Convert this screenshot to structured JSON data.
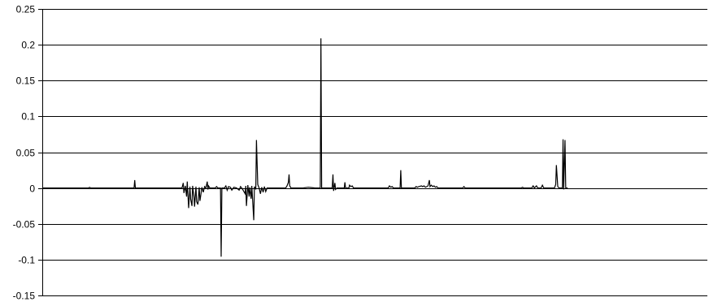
{
  "chart_data": {
    "type": "line",
    "title": "",
    "xlabel": "",
    "ylabel": "",
    "ylim": [
      -0.15,
      0.25
    ],
    "yticks": [
      0.25,
      0.2,
      0.15,
      0.1,
      0.05,
      0,
      -0.05,
      -0.1,
      -0.15
    ],
    "ytick_labels": [
      "0.25",
      "0.2",
      "0.15",
      "0.1",
      "0.05",
      "0",
      "-0.05",
      "-0.1",
      "-0.15"
    ],
    "grid": true,
    "legend": "none",
    "line_color": "#000000",
    "x_range": [
      0,
      1000
    ],
    "series": [
      {
        "points": [
          [
            0,
            0
          ],
          [
            70,
            0
          ],
          [
            71,
            0.001
          ],
          [
            73,
            0
          ],
          [
            138,
            0
          ],
          [
            139,
            0.011
          ],
          [
            140,
            0
          ],
          [
            210,
            0
          ],
          [
            212,
            0.007
          ],
          [
            213,
            -0.007
          ],
          [
            215,
            0.003
          ],
          [
            217,
            -0.012
          ],
          [
            218,
            0.009
          ],
          [
            220,
            -0.028
          ],
          [
            222,
            0.002
          ],
          [
            223,
            -0.015
          ],
          [
            225,
            -0.025
          ],
          [
            226,
            0.003
          ],
          [
            228,
            -0.012
          ],
          [
            229,
            -0.026
          ],
          [
            231,
            0.002
          ],
          [
            232,
            -0.019
          ],
          [
            234,
            -0.023
          ],
          [
            236,
            0.001
          ],
          [
            237,
            -0.018
          ],
          [
            238,
            -0.012
          ],
          [
            240,
            0.001
          ],
          [
            242,
            -0.006
          ],
          [
            244,
            0.002
          ],
          [
            246,
            0
          ],
          [
            248,
            0.009
          ],
          [
            249,
            -0.002
          ],
          [
            250,
            0.003
          ],
          [
            252,
            0
          ],
          [
            260,
            0
          ],
          [
            262,
            0.002
          ],
          [
            264,
            0
          ],
          [
            268,
            0
          ],
          [
            269,
            -0.096
          ],
          [
            270,
            0
          ],
          [
            274,
            0
          ],
          [
            276,
            0.003
          ],
          [
            278,
            -0.003
          ],
          [
            280,
            0.002
          ],
          [
            283,
            0.001
          ],
          [
            285,
            -0.003
          ],
          [
            288,
            0.001
          ],
          [
            292,
            0
          ],
          [
            296,
            -0.003
          ],
          [
            298,
            0.002
          ],
          [
            300,
            0
          ],
          [
            305,
            -0.008
          ],
          [
            306,
            0.003
          ],
          [
            307,
            -0.025
          ],
          [
            309,
            0.004
          ],
          [
            311,
            -0.012
          ],
          [
            312,
            0.001
          ],
          [
            314,
            -0.015
          ],
          [
            315,
            0.003
          ],
          [
            318,
            -0.045
          ],
          [
            319,
            0.002
          ],
          [
            321,
            -0.002
          ],
          [
            322,
            0.067
          ],
          [
            324,
            0.005
          ],
          [
            326,
            0
          ],
          [
            328,
            -0.008
          ],
          [
            330,
            0.001
          ],
          [
            332,
            -0.006
          ],
          [
            334,
            0.002
          ],
          [
            336,
            -0.005
          ],
          [
            338,
            0
          ],
          [
            366,
            0
          ],
          [
            368,
            0.003
          ],
          [
            370,
            0.008
          ],
          [
            371,
            0.019
          ],
          [
            372,
            0.003
          ],
          [
            374,
            0
          ],
          [
            392,
            0
          ],
          [
            400,
            0.001
          ],
          [
            410,
            0
          ],
          [
            418,
            0
          ],
          [
            419,
            0.209
          ],
          [
            420,
            0
          ],
          [
            436,
            0
          ],
          [
            437,
            0.019
          ],
          [
            438,
            -0.004
          ],
          [
            440,
            0.007
          ],
          [
            441,
            -0.002
          ],
          [
            443,
            0
          ],
          [
            454,
            0
          ],
          [
            455,
            0.008
          ],
          [
            456,
            0
          ],
          [
            461,
            0
          ],
          [
            462,
            0.004
          ],
          [
            464,
            0.002
          ],
          [
            466,
            0.003
          ],
          [
            468,
            0
          ],
          [
            500,
            0
          ],
          [
            520,
            0
          ],
          [
            522,
            0.003
          ],
          [
            524,
            0.001
          ],
          [
            526,
            0.002
          ],
          [
            528,
            0
          ],
          [
            538,
            0
          ],
          [
            539,
            0.025
          ],
          [
            540,
            0
          ],
          [
            560,
            0
          ],
          [
            562,
            0.002
          ],
          [
            564,
            0.001
          ],
          [
            566,
            0.002
          ],
          [
            570,
            0.003
          ],
          [
            572,
            0.002
          ],
          [
            574,
            0.003
          ],
          [
            576,
            0.001
          ],
          [
            578,
            0.002
          ],
          [
            580,
            0.003
          ],
          [
            582,
            0.011
          ],
          [
            583,
            0.002
          ],
          [
            585,
            0.004
          ],
          [
            587,
            0.002
          ],
          [
            589,
            0.003
          ],
          [
            591,
            0.001
          ],
          [
            593,
            0.002
          ],
          [
            595,
            0
          ],
          [
            632,
            0
          ],
          [
            634,
            0.002
          ],
          [
            636,
            0
          ],
          [
            720,
            0
          ],
          [
            722,
            0.001
          ],
          [
            724,
            0
          ],
          [
            736,
            0
          ],
          [
            738,
            0.003
          ],
          [
            740,
            0
          ],
          [
            743,
            0.003
          ],
          [
            745,
            0
          ],
          [
            750,
            0
          ],
          [
            752,
            0.004
          ],
          [
            754,
            0
          ],
          [
            770,
            0
          ],
          [
            772,
            0.005
          ],
          [
            773,
            0.032
          ],
          [
            775,
            0.002
          ],
          [
            777,
            0
          ],
          [
            782,
            0
          ],
          [
            783,
            0.068
          ],
          [
            784,
            -0.002
          ],
          [
            786,
            0.067
          ],
          [
            787,
            0
          ],
          [
            790,
            0
          ]
        ]
      }
    ]
  }
}
